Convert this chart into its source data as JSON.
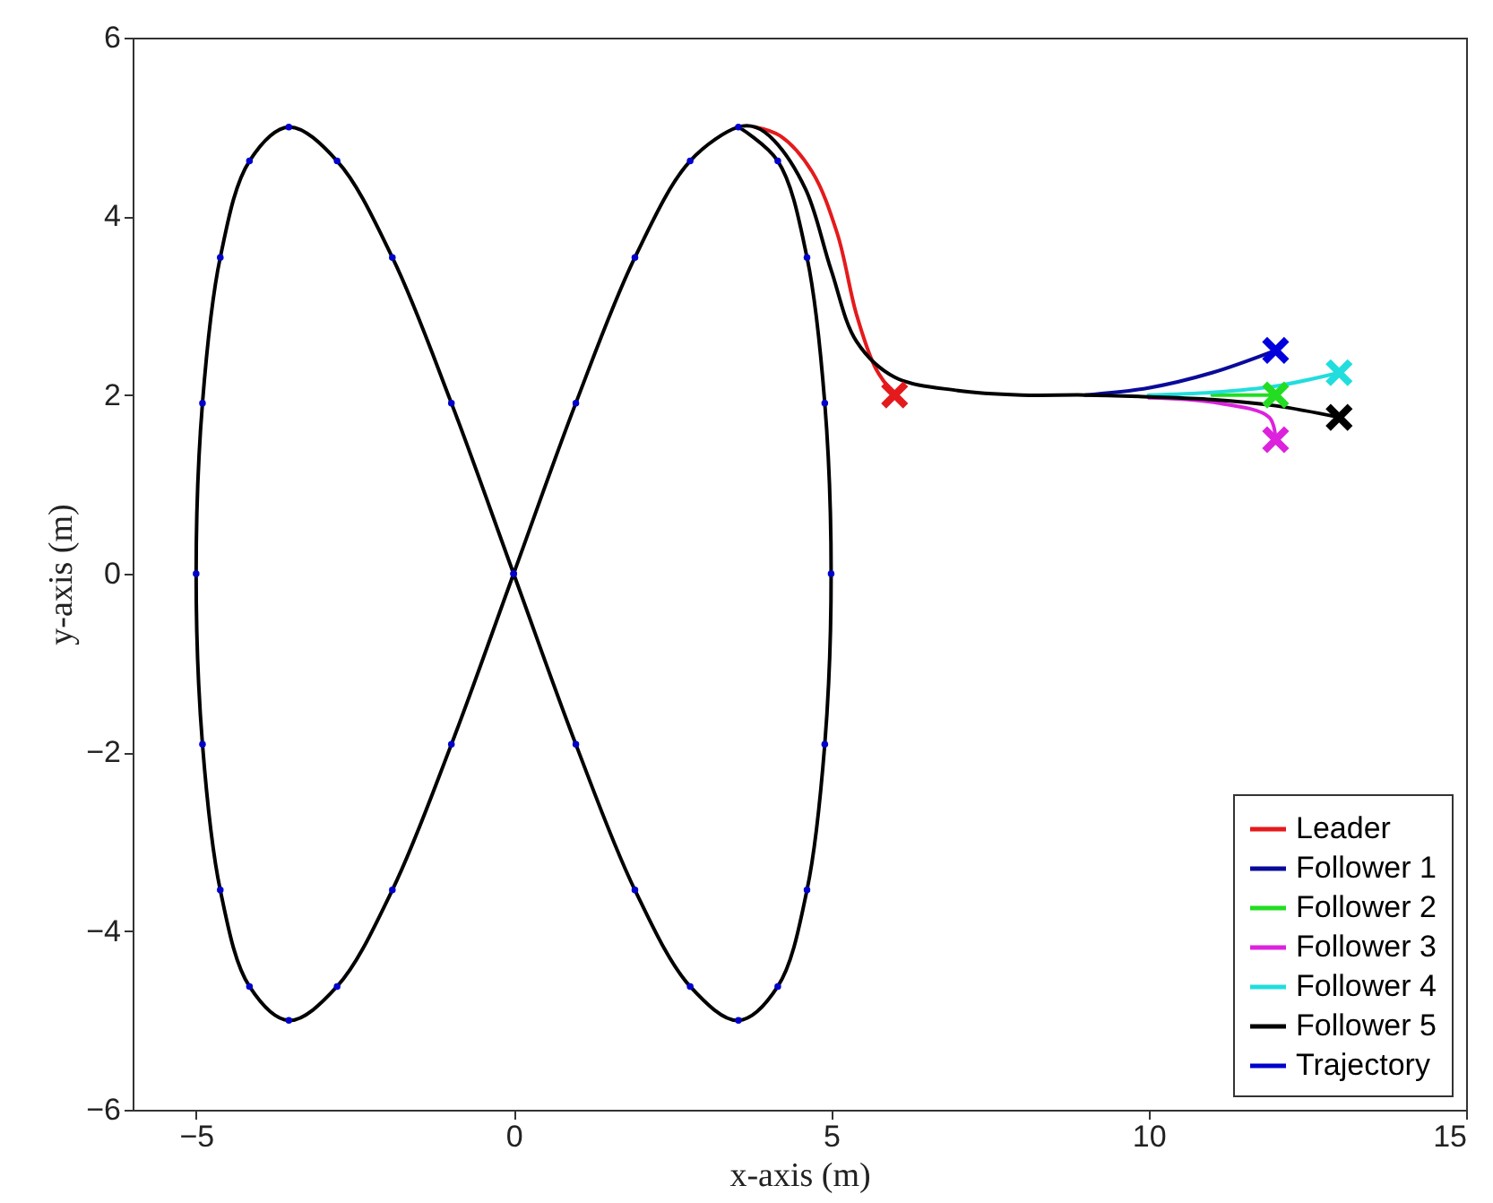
{
  "chart_data": {
    "type": "line",
    "xlabel": "x-axis (m)",
    "ylabel": "y-axis (m)",
    "xlim": [
      -6,
      15
    ],
    "xticks": [
      -5,
      0,
      5,
      10,
      15
    ],
    "ylim": [
      -6,
      6
    ],
    "yticks": [
      -6,
      -4,
      -2,
      0,
      2,
      4,
      6
    ],
    "grid": false,
    "legend": "bottom right",
    "series": [
      {
        "name": "Leader",
        "color": "#e41a1c",
        "x": [
          6,
          5.7,
          5.4,
          5.1,
          4.7,
          4.2,
          3.8
        ],
        "values": [
          2,
          2.3,
          2.9,
          3.8,
          4.5,
          4.9,
          5
        ]
      },
      {
        "name": "Follower 1",
        "color": "#0a0a9a",
        "x": [
          12,
          11,
          10,
          9
        ],
        "values": [
          2.5,
          2.25,
          2.08,
          2
        ]
      },
      {
        "name": "Follower 2",
        "color": "#22dd22",
        "x": [
          12,
          11
        ],
        "values": [
          2,
          2
        ]
      },
      {
        "name": "Follower 3",
        "color": "#dd22dd",
        "x": [
          12,
          11.9,
          11,
          10
        ],
        "values": [
          1.5,
          1.75,
          1.92,
          1.97
        ]
      },
      {
        "name": "Follower 4",
        "color": "#22dddd",
        "x": [
          13,
          12,
          11,
          10
        ],
        "values": [
          2.25,
          2.1,
          2.03,
          2
        ]
      },
      {
        "name": "Follower 5",
        "color": "#000000",
        "x": [
          13,
          12,
          11,
          10,
          9,
          8,
          7,
          6,
          5.4,
          5,
          4.6,
          4.1,
          3.8,
          3.54,
          2.78,
          1.91,
          0.98,
          0,
          -0.98,
          -1.91,
          -2.78,
          -3.54,
          -4.16,
          -4.62,
          -4.9,
          -5,
          -4.9,
          -4.62,
          -4.16,
          -3.54,
          -2.78,
          -1.91,
          -0.98,
          0,
          0.98,
          1.91,
          2.78,
          3.54,
          4.16,
          4.62,
          4.9,
          5,
          4.9,
          4.62,
          4.16,
          3.54
        ],
        "values": [
          1.75,
          1.88,
          1.95,
          1.98,
          2,
          2,
          2.05,
          2.2,
          2.6,
          3.4,
          4.3,
          4.85,
          5,
          5,
          4.62,
          3.54,
          1.91,
          0,
          -1.91,
          -3.54,
          -4.62,
          -5,
          -4.62,
          -3.54,
          -1.91,
          0,
          1.91,
          3.54,
          4.62,
          5,
          4.62,
          3.54,
          1.91,
          0,
          -1.91,
          -3.54,
          -4.62,
          -5,
          -4.62,
          -3.54,
          -1.91,
          0,
          1.91,
          3.54,
          4.62,
          5
        ]
      },
      {
        "name": "Trajectory",
        "type": "scatter",
        "marker": "circle",
        "color": "#0000cc",
        "x": [
          3.54,
          2.78,
          1.91,
          0.98,
          0,
          -0.98,
          -1.91,
          -2.78,
          -3.54,
          -4.16,
          -4.62,
          -4.9,
          -5,
          -4.9,
          -4.62,
          -4.16,
          -3.54,
          -2.78,
          -1.91,
          -0.98,
          0,
          0.98,
          1.91,
          2.78,
          3.54,
          4.16,
          4.62,
          4.9,
          5,
          4.9,
          4.62,
          4.16
        ],
        "values": [
          5,
          4.62,
          3.54,
          1.91,
          0,
          -1.91,
          -3.54,
          -4.62,
          -5,
          -4.62,
          -3.54,
          -1.91,
          0,
          1.91,
          3.54,
          4.62,
          5,
          4.62,
          3.54,
          1.91,
          0,
          -1.91,
          -3.54,
          -4.62,
          -5,
          -4.62,
          -3.54,
          -1.91,
          0,
          1.91,
          3.54,
          4.62
        ]
      },
      {
        "type": "scatter",
        "marker": "cross",
        "color": "#e41a1c",
        "x": [
          6
        ],
        "values": [
          2
        ]
      },
      {
        "type": "scatter",
        "marker": "cross",
        "color": "#0000dd",
        "x": [
          12
        ],
        "values": [
          2.5
        ]
      },
      {
        "type": "scatter",
        "marker": "cross",
        "color": "#22dd22",
        "x": [
          12
        ],
        "values": [
          2
        ]
      },
      {
        "type": "scatter",
        "marker": "cross",
        "color": "#dd22dd",
        "x": [
          12
        ],
        "values": [
          1.5
        ]
      },
      {
        "type": "scatter",
        "marker": "cross",
        "color": "#22dddd",
        "x": [
          13
        ],
        "values": [
          2.25
        ]
      },
      {
        "type": "scatter",
        "marker": "cross",
        "color": "#000000",
        "x": [
          13
        ],
        "values": [
          1.75
        ]
      }
    ]
  }
}
